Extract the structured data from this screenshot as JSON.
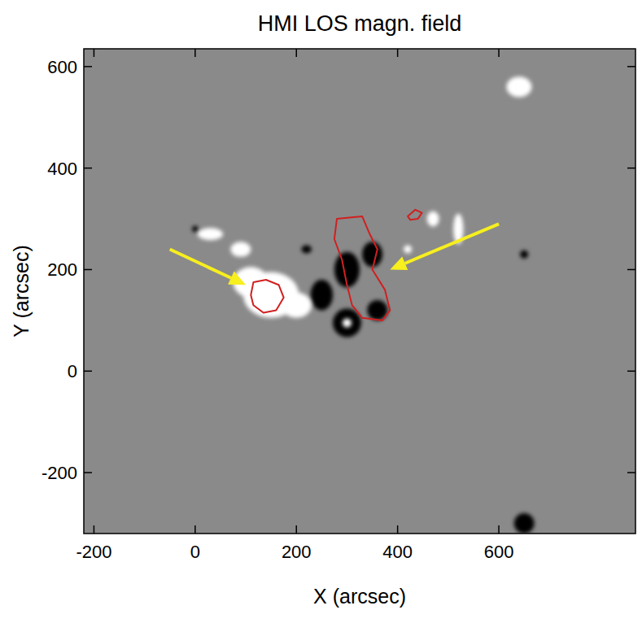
{
  "chart_data": {
    "type": "image",
    "title": "HMI LOS magn. field",
    "x_label": "X (arcsec)",
    "y_label": "Y (arcsec)",
    "xlim": [
      -220,
      870
    ],
    "ylim": [
      -320,
      635
    ],
    "xticks": [
      -200,
      0,
      200,
      400,
      600
    ],
    "yticks": [
      -200,
      0,
      200,
      400,
      600
    ],
    "negative_patches": {
      "x": [
        300,
        250,
        300,
        350,
        360,
        220,
        650,
        650,
        0
      ],
      "y": [
        95,
        150,
        200,
        230,
        120,
        240,
        -300,
        230,
        280
      ],
      "rx": [
        28,
        22,
        25,
        20,
        20,
        10,
        20,
        8,
        6
      ],
      "ry": [
        28,
        30,
        35,
        25,
        20,
        8,
        20,
        8,
        6
      ]
    },
    "positive_patches": {
      "x": [
        150,
        110,
        200,
        90,
        30,
        300,
        520,
        470,
        640,
        420
      ],
      "y": [
        150,
        175,
        130,
        240,
        270,
        95,
        280,
        300,
        560,
        240
      ],
      "rx": [
        55,
        35,
        30,
        20,
        25,
        9,
        10,
        12,
        25,
        8
      ],
      "ry": [
        45,
        30,
        25,
        15,
        12,
        9,
        30,
        15,
        20,
        8
      ]
    },
    "contours": [
      {
        "x": [
          110,
          115,
          140,
          165,
          175,
          160,
          135,
          115
        ],
        "y": [
          150,
          175,
          180,
          170,
          145,
          120,
          115,
          130
        ]
      },
      {
        "x": [
          280,
          330,
          345,
          360,
          350,
          375,
          385,
          370,
          330,
          310,
          300,
          290,
          275
        ],
        "y": [
          300,
          305,
          270,
          240,
          200,
          160,
          120,
          100,
          105,
          130,
          170,
          220,
          260
        ]
      },
      {
        "x": [
          420,
          435,
          448,
          440,
          425
        ],
        "y": [
          305,
          318,
          312,
          300,
          298
        ]
      }
    ],
    "arrows": [
      {
        "x": [
          -50,
          100
        ],
        "y": [
          240,
          170
        ]
      },
      {
        "x": [
          600,
          385
        ],
        "y": [
          290,
          200
        ]
      }
    ]
  }
}
